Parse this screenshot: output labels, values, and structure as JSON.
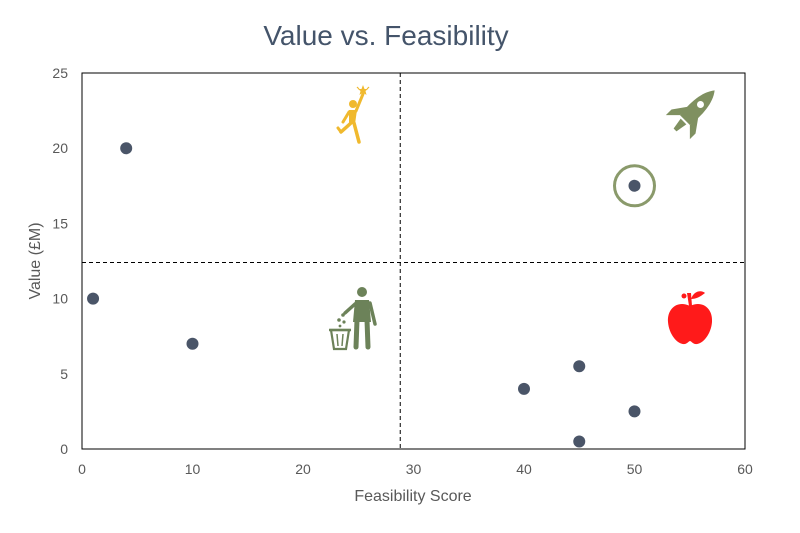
{
  "chart_data": {
    "type": "scatter",
    "title": "Value vs. Feasibility",
    "xlabel": "Feasibility Score",
    "ylabel": "Value (£M)",
    "xlim": [
      0,
      60
    ],
    "ylim": [
      0,
      25
    ],
    "xticks": [
      "0",
      "10",
      "20",
      "30",
      "40",
      "50",
      "60"
    ],
    "yticks": [
      "0",
      "5",
      "10",
      "15",
      "20",
      "25"
    ],
    "grid": false,
    "legend": "none",
    "points": [
      {
        "x": 4,
        "y": 20
      },
      {
        "x": 1,
        "y": 10
      },
      {
        "x": 10,
        "y": 7
      },
      {
        "x": 50,
        "y": 17.5
      },
      {
        "x": 40,
        "y": 4
      },
      {
        "x": 45,
        "y": 5.5
      },
      {
        "x": 50,
        "y": 2.5
      },
      {
        "x": 45,
        "y": 0.5
      }
    ],
    "highlighted_point": {
      "x": 50,
      "y": 17.5
    },
    "quadrant_divider": {
      "x": 28.8,
      "y": 12.4
    },
    "quadrant_icons": {
      "top_left": "stretch-reach-person-icon",
      "top_right": "rocket-icon",
      "bottom_left": "person-trash-bin-icon",
      "bottom_right": "apple-icon"
    },
    "colors": {
      "point": "#4a5568",
      "title": "#44546a",
      "axis_text": "#595959",
      "highlight_ring": "#8a9a6b",
      "rocket": "#7f9060",
      "bin_figure": "#6c8259",
      "reach_figure": "#f0b92e",
      "apple": "#ff1a1a"
    }
  }
}
